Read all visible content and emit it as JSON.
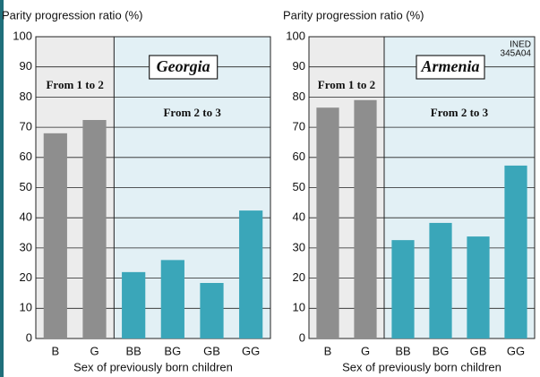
{
  "chart_data": [
    {
      "type": "bar",
      "y_axis_label": "Parity progression ratio (%)",
      "title": "Georgia",
      "annotations": [
        "From 1 to 2",
        "From 2 to 3"
      ],
      "x_axis_label": "Sex of previously born children",
      "categories": [
        "B",
        "G",
        "BB",
        "BG",
        "GB",
        "GG"
      ],
      "values": [
        68,
        72.4,
        22,
        26,
        18.4,
        42.4
      ],
      "colors": [
        "#8e8e8e",
        "#8e8e8e",
        "#3aa6b9",
        "#3aa6b9",
        "#3aa6b9",
        "#3aa6b9"
      ],
      "ylim": [
        0,
        100
      ],
      "yticks": [
        0,
        10,
        20,
        30,
        40,
        50,
        60,
        70,
        80,
        90,
        100
      ],
      "grid": true
    },
    {
      "type": "bar",
      "y_axis_label": "Parity progression ratio (%)",
      "title": "Armenia",
      "annotations": [
        "From 1 to 2",
        "From 2 to 3"
      ],
      "credit": [
        "INED",
        "345A04"
      ],
      "x_axis_label": "Sex of previously born children",
      "categories": [
        "B",
        "G",
        "BB",
        "BG",
        "GB",
        "GG"
      ],
      "values": [
        76.5,
        79,
        32.6,
        38.3,
        33.8,
        57.3
      ],
      "colors": [
        "#8e8e8e",
        "#8e8e8e",
        "#3aa6b9",
        "#3aa6b9",
        "#3aa6b9",
        "#3aa6b9"
      ],
      "ylim": [
        0,
        100
      ],
      "yticks": [
        0,
        10,
        20,
        30,
        40,
        50,
        60,
        70,
        80,
        90,
        100
      ],
      "grid": true
    }
  ]
}
